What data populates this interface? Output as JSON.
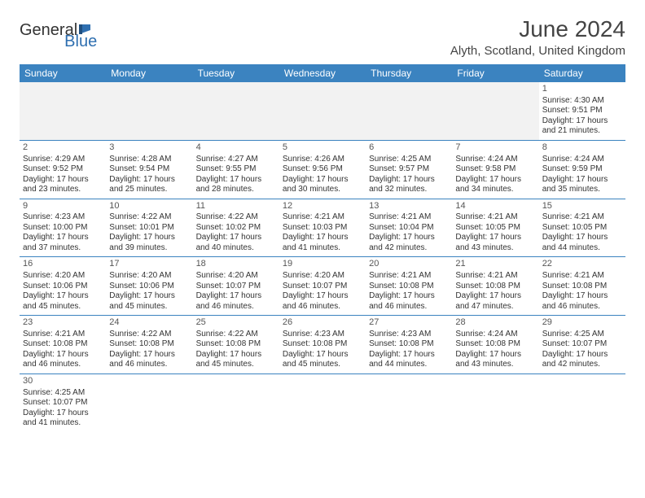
{
  "logo": {
    "general": "General",
    "blue": "Blue"
  },
  "header": {
    "title": "June 2024",
    "location": "Alyth, Scotland, United Kingdom"
  },
  "colors": {
    "header_bar": "#3b83c0",
    "header_text": "#ffffff",
    "row_border": "#3b83c0",
    "empty_bg": "#f2f2f2",
    "body_text": "#333333",
    "logo_blue": "#2f6fb0"
  },
  "dayNames": [
    "Sunday",
    "Monday",
    "Tuesday",
    "Wednesday",
    "Thursday",
    "Friday",
    "Saturday"
  ],
  "weeks": [
    [
      null,
      null,
      null,
      null,
      null,
      null,
      {
        "n": "1",
        "sr": "4:30 AM",
        "ss": "9:51 PM",
        "dl": "17 hours and 21 minutes."
      }
    ],
    [
      {
        "n": "2",
        "sr": "4:29 AM",
        "ss": "9:52 PM",
        "dl": "17 hours and 23 minutes."
      },
      {
        "n": "3",
        "sr": "4:28 AM",
        "ss": "9:54 PM",
        "dl": "17 hours and 25 minutes."
      },
      {
        "n": "4",
        "sr": "4:27 AM",
        "ss": "9:55 PM",
        "dl": "17 hours and 28 minutes."
      },
      {
        "n": "5",
        "sr": "4:26 AM",
        "ss": "9:56 PM",
        "dl": "17 hours and 30 minutes."
      },
      {
        "n": "6",
        "sr": "4:25 AM",
        "ss": "9:57 PM",
        "dl": "17 hours and 32 minutes."
      },
      {
        "n": "7",
        "sr": "4:24 AM",
        "ss": "9:58 PM",
        "dl": "17 hours and 34 minutes."
      },
      {
        "n": "8",
        "sr": "4:24 AM",
        "ss": "9:59 PM",
        "dl": "17 hours and 35 minutes."
      }
    ],
    [
      {
        "n": "9",
        "sr": "4:23 AM",
        "ss": "10:00 PM",
        "dl": "17 hours and 37 minutes."
      },
      {
        "n": "10",
        "sr": "4:22 AM",
        "ss": "10:01 PM",
        "dl": "17 hours and 39 minutes."
      },
      {
        "n": "11",
        "sr": "4:22 AM",
        "ss": "10:02 PM",
        "dl": "17 hours and 40 minutes."
      },
      {
        "n": "12",
        "sr": "4:21 AM",
        "ss": "10:03 PM",
        "dl": "17 hours and 41 minutes."
      },
      {
        "n": "13",
        "sr": "4:21 AM",
        "ss": "10:04 PM",
        "dl": "17 hours and 42 minutes."
      },
      {
        "n": "14",
        "sr": "4:21 AM",
        "ss": "10:05 PM",
        "dl": "17 hours and 43 minutes."
      },
      {
        "n": "15",
        "sr": "4:21 AM",
        "ss": "10:05 PM",
        "dl": "17 hours and 44 minutes."
      }
    ],
    [
      {
        "n": "16",
        "sr": "4:20 AM",
        "ss": "10:06 PM",
        "dl": "17 hours and 45 minutes."
      },
      {
        "n": "17",
        "sr": "4:20 AM",
        "ss": "10:06 PM",
        "dl": "17 hours and 45 minutes."
      },
      {
        "n": "18",
        "sr": "4:20 AM",
        "ss": "10:07 PM",
        "dl": "17 hours and 46 minutes."
      },
      {
        "n": "19",
        "sr": "4:20 AM",
        "ss": "10:07 PM",
        "dl": "17 hours and 46 minutes."
      },
      {
        "n": "20",
        "sr": "4:21 AM",
        "ss": "10:08 PM",
        "dl": "17 hours and 46 minutes."
      },
      {
        "n": "21",
        "sr": "4:21 AM",
        "ss": "10:08 PM",
        "dl": "17 hours and 47 minutes."
      },
      {
        "n": "22",
        "sr": "4:21 AM",
        "ss": "10:08 PM",
        "dl": "17 hours and 46 minutes."
      }
    ],
    [
      {
        "n": "23",
        "sr": "4:21 AM",
        "ss": "10:08 PM",
        "dl": "17 hours and 46 minutes."
      },
      {
        "n": "24",
        "sr": "4:22 AM",
        "ss": "10:08 PM",
        "dl": "17 hours and 46 minutes."
      },
      {
        "n": "25",
        "sr": "4:22 AM",
        "ss": "10:08 PM",
        "dl": "17 hours and 45 minutes."
      },
      {
        "n": "26",
        "sr": "4:23 AM",
        "ss": "10:08 PM",
        "dl": "17 hours and 45 minutes."
      },
      {
        "n": "27",
        "sr": "4:23 AM",
        "ss": "10:08 PM",
        "dl": "17 hours and 44 minutes."
      },
      {
        "n": "28",
        "sr": "4:24 AM",
        "ss": "10:08 PM",
        "dl": "17 hours and 43 minutes."
      },
      {
        "n": "29",
        "sr": "4:25 AM",
        "ss": "10:07 PM",
        "dl": "17 hours and 42 minutes."
      }
    ],
    [
      {
        "n": "30",
        "sr": "4:25 AM",
        "ss": "10:07 PM",
        "dl": "17 hours and 41 minutes."
      },
      null,
      null,
      null,
      null,
      null,
      null
    ]
  ],
  "labels": {
    "sunrise": "Sunrise:",
    "sunset": "Sunset:",
    "daylight": "Daylight:"
  }
}
